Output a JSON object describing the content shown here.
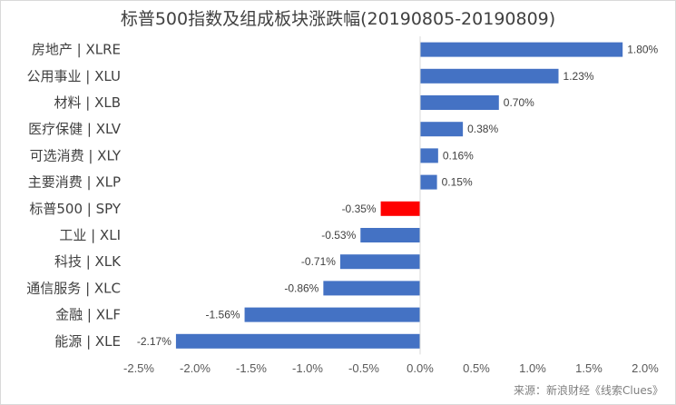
{
  "chart_data": {
    "type": "bar",
    "orientation": "horizontal",
    "title": "标普500指数及组成板块涨跌幅(20190805-20190809)",
    "categories": [
      "房地产 | XLRE",
      "公用事业 | XLU",
      "材料 | XLB",
      "医疗保健 | XLV",
      "可选消费 | XLY",
      "主要消费 | XLP",
      "标普500 | SPY",
      "工业 | XLI",
      "科技 | XLK",
      "通信服务 | XLC",
      "金融 | XLF",
      "能源 | XLE"
    ],
    "values": [
      1.8,
      1.23,
      0.7,
      0.38,
      0.16,
      0.15,
      -0.35,
      -0.53,
      -0.71,
      -0.86,
      -1.56,
      -2.17
    ],
    "value_labels": [
      "1.80%",
      "1.23%",
      "0.70%",
      "0.38%",
      "0.16%",
      "0.15%",
      "-0.35%",
      "-0.53%",
      "-0.71%",
      "-0.86%",
      "-1.56%",
      "-2.17%"
    ],
    "xlim": [
      -2.5,
      2.0
    ],
    "xticks": [
      -2.5,
      -2.0,
      -1.5,
      -1.0,
      -0.5,
      0.0,
      0.5,
      1.0,
      1.5,
      2.0
    ],
    "xtick_labels": [
      "-2.5%",
      "-2.0%",
      "-1.5%",
      "-1.0%",
      "-0.5%",
      "0.0%",
      "0.5%",
      "1.0%",
      "1.5%",
      "2.0%"
    ],
    "colors": {
      "default": "#4472c4",
      "highlight": "#ff0000"
    },
    "highlight_category": "标普500 | SPY",
    "grid": false
  },
  "source_note": "来源：新浪财经《线索Clues》"
}
